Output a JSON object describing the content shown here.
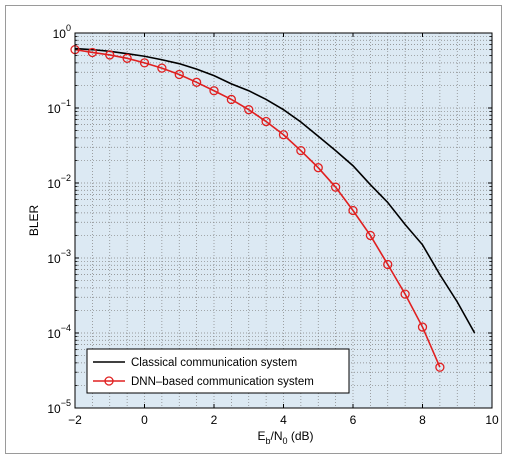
{
  "chart_data": {
    "type": "line",
    "title": "",
    "xlabel": "E_b/N_0 (dB)",
    "xlabel_parts": {
      "main": "E",
      "sub1": "b",
      "slash": "/N",
      "sub2": "0",
      "unit": " (dB)"
    },
    "ylabel": "BLER",
    "xlim": [
      -2,
      10
    ],
    "ylim": [
      1e-05,
      1
    ],
    "yscale": "log",
    "x_ticks": [
      -2,
      0,
      2,
      4,
      6,
      8,
      10
    ],
    "x_tick_labels": [
      "−2",
      "0",
      "2",
      "4",
      "6",
      "8",
      "10"
    ],
    "y_ticks": [
      {
        "base": "10",
        "exp": "0"
      },
      {
        "base": "10",
        "exp": "−1"
      },
      {
        "base": "10",
        "exp": "−2"
      },
      {
        "base": "10",
        "exp": "−3"
      },
      {
        "base": "10",
        "exp": "−4"
      },
      {
        "base": "10",
        "exp": "−5"
      }
    ],
    "grid": true,
    "legend_position": "bottom-left",
    "colors": {
      "plot_background": "#dce9f3",
      "grid": "#808080",
      "classical": "#000000",
      "dnn": "#e02020"
    },
    "series": [
      {
        "name": "Classical communication system",
        "color": "#000000",
        "marker": "none",
        "x": [
          -2,
          -1.5,
          -1,
          -0.5,
          0,
          0.5,
          1,
          1.5,
          2,
          2.5,
          3,
          3.5,
          4,
          4.5,
          5,
          5.5,
          6,
          6.5,
          7,
          7.5,
          8,
          8.5,
          9,
          9.5
        ],
        "y": [
          0.62,
          0.6,
          0.57,
          0.53,
          0.49,
          0.44,
          0.39,
          0.33,
          0.27,
          0.21,
          0.17,
          0.13,
          0.095,
          0.065,
          0.042,
          0.027,
          0.017,
          0.0095,
          0.0055,
          0.0028,
          0.0015,
          0.0006,
          0.00026,
          0.0001
        ]
      },
      {
        "name": "DNN–based communication system",
        "color": "#e02020",
        "marker": "circle",
        "x": [
          -2,
          -1.5,
          -1,
          -0.5,
          0,
          0.5,
          1,
          1.5,
          2,
          2.5,
          3,
          3.5,
          4,
          4.5,
          5,
          5.5,
          6,
          6.5,
          7,
          7.5,
          8,
          8.5
        ],
        "y": [
          0.6,
          0.55,
          0.51,
          0.46,
          0.4,
          0.34,
          0.28,
          0.22,
          0.17,
          0.13,
          0.095,
          0.066,
          0.044,
          0.027,
          0.016,
          0.0088,
          0.0043,
          0.002,
          0.00082,
          0.00033,
          0.00012,
          3.5e-05
        ]
      }
    ]
  }
}
